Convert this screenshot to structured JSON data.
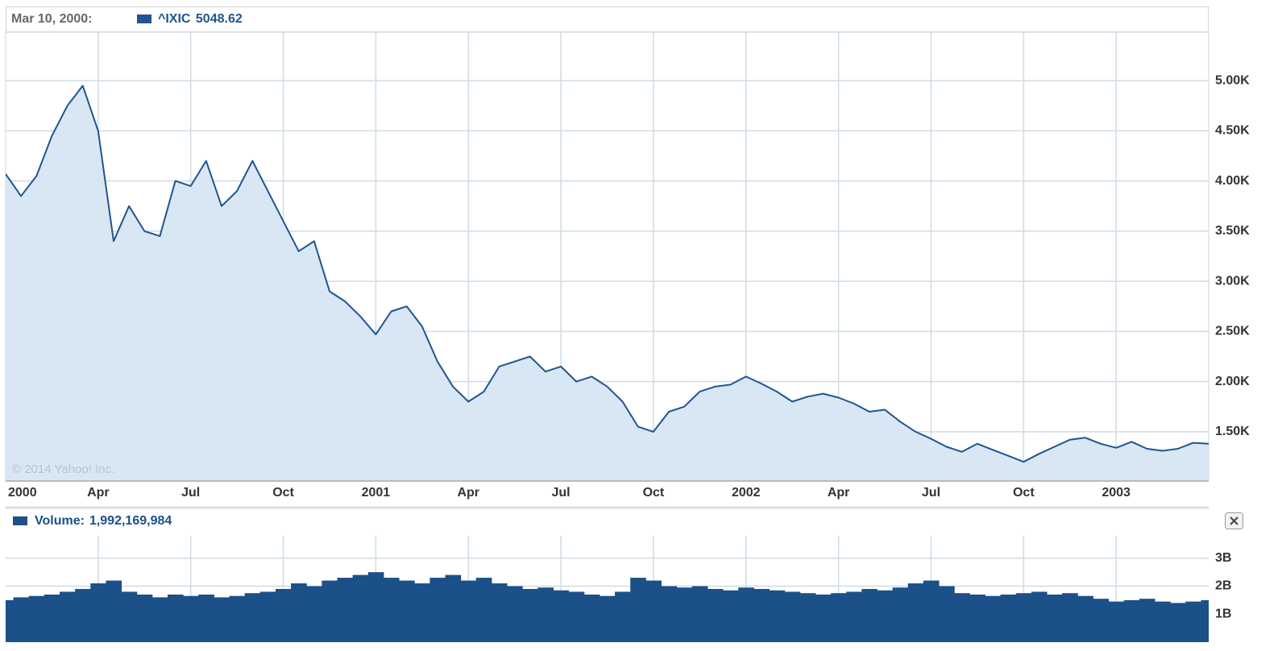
{
  "chart_data": [
    {
      "type": "line",
      "readout_date": "Mar 10, 2000:",
      "readout_value": 5048.62,
      "watermark": "© 2014 Yahoo! Inc.",
      "categories": [
        "2000",
        null,
        null,
        null,
        null,
        null,
        "Apr",
        null,
        null,
        null,
        null,
        null,
        "Jul",
        null,
        null,
        null,
        null,
        null,
        "Oct",
        null,
        null,
        null,
        null,
        null,
        "2001",
        null,
        null,
        null,
        null,
        null,
        "Apr",
        null,
        null,
        null,
        null,
        null,
        "Jul",
        null,
        null,
        null,
        null,
        null,
        "Oct",
        null,
        null,
        null,
        null,
        null,
        "2002",
        null,
        null,
        null,
        null,
        null,
        "Apr",
        null,
        null,
        null,
        null,
        null,
        "Jul",
        null,
        null,
        null,
        null,
        null,
        "Oct",
        null,
        null,
        null,
        null,
        null,
        "2003",
        null,
        null,
        null,
        null,
        null,
        null
      ],
      "series": [
        {
          "name": "^IXIC",
          "color": "#1f5591",
          "fill": "#d8e7f3",
          "values": [
            4069,
            3850,
            4050,
            4450,
            4750,
            4950,
            4500,
            3400,
            3750,
            3500,
            3450,
            4000,
            3950,
            4200,
            3750,
            3900,
            4200,
            3900,
            3600,
            3300,
            3400,
            2900,
            2800,
            2650,
            2470,
            2700,
            2750,
            2550,
            2200,
            1950,
            1800,
            1900,
            2150,
            2200,
            2250,
            2100,
            2150,
            2000,
            2050,
            1950,
            1800,
            1550,
            1500,
            1700,
            1750,
            1900,
            1950,
            1970,
            2050,
            1980,
            1900,
            1800,
            1850,
            1880,
            1840,
            1780,
            1700,
            1720,
            1600,
            1500,
            1430,
            1350,
            1300,
            1380,
            1320,
            1260,
            1200,
            1280,
            1350,
            1420,
            1440,
            1380,
            1340,
            1400,
            1330,
            1310,
            1330,
            1390,
            1380
          ]
        }
      ],
      "ylim": [
        1017,
        5483
      ],
      "yticks": [
        {
          "value": 1500,
          "label": "1.50K"
        },
        {
          "value": 2000,
          "label": "2.00K"
        },
        {
          "value": 2500,
          "label": "2.50K"
        },
        {
          "value": 3000,
          "label": "3.00K"
        },
        {
          "value": 3500,
          "label": "3.50K"
        },
        {
          "value": 4000,
          "label": "4.00K"
        },
        {
          "value": 4500,
          "label": "4.50K"
        },
        {
          "value": 5000,
          "label": "5.00K"
        }
      ],
      "grid": true
    },
    {
      "type": "bar",
      "readout_value": 1992169984,
      "readout_value_label": "1,992,169,984",
      "series": [
        {
          "name": "Volume:",
          "color": "#1b5088",
          "values": [
            1500000000,
            1600000000,
            1650000000,
            1700000000,
            1800000000,
            1900000000,
            2100000000,
            2200000000,
            1800000000,
            1700000000,
            1600000000,
            1700000000,
            1650000000,
            1700000000,
            1600000000,
            1650000000,
            1750000000,
            1800000000,
            1900000000,
            2100000000,
            2000000000,
            2200000000,
            2300000000,
            2400000000,
            2500000000,
            2300000000,
            2200000000,
            2100000000,
            2300000000,
            2400000000,
            2200000000,
            2300000000,
            2100000000,
            2000000000,
            1900000000,
            1950000000,
            1850000000,
            1800000000,
            1700000000,
            1650000000,
            1800000000,
            2300000000,
            2200000000,
            2000000000,
            1950000000,
            2000000000,
            1900000000,
            1850000000,
            1950000000,
            1900000000,
            1850000000,
            1800000000,
            1750000000,
            1700000000,
            1750000000,
            1800000000,
            1900000000,
            1850000000,
            1950000000,
            2100000000,
            2200000000,
            2000000000,
            1750000000,
            1700000000,
            1650000000,
            1700000000,
            1750000000,
            1800000000,
            1700000000,
            1750000000,
            1650000000,
            1550000000,
            1450000000,
            1500000000,
            1550000000,
            1450000000,
            1400000000,
            1450000000,
            1500000000
          ]
        }
      ],
      "ylim": [
        0,
        3800000000
      ],
      "yticks": [
        {
          "value": 1000000000,
          "label": "1B"
        },
        {
          "value": 2000000000,
          "label": "2B"
        },
        {
          "value": 3000000000,
          "label": "3B"
        }
      ],
      "grid": true
    }
  ]
}
